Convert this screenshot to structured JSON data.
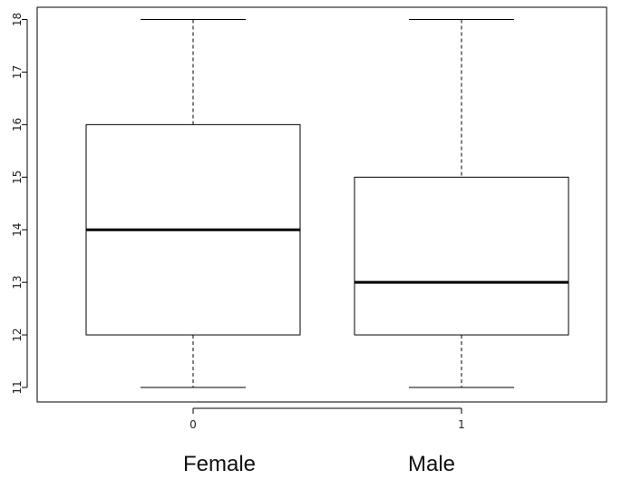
{
  "chart_data": {
    "type": "box",
    "title": "",
    "xlabel": "",
    "ylabel": "",
    "categories": [
      "0",
      "1"
    ],
    "group_labels": [
      "Female",
      "Male"
    ],
    "boxes": [
      {
        "category": "0",
        "min": 11,
        "q1": 12,
        "median": 14,
        "q3": 16,
        "max": 18
      },
      {
        "category": "1",
        "min": 11,
        "q1": 12,
        "median": 13,
        "q3": 15,
        "max": 18
      }
    ],
    "ylim": [
      10.8,
      18.2
    ],
    "yticks": [
      11,
      12,
      13,
      14,
      15,
      16,
      17,
      18
    ],
    "grid": false,
    "legend": "none"
  }
}
